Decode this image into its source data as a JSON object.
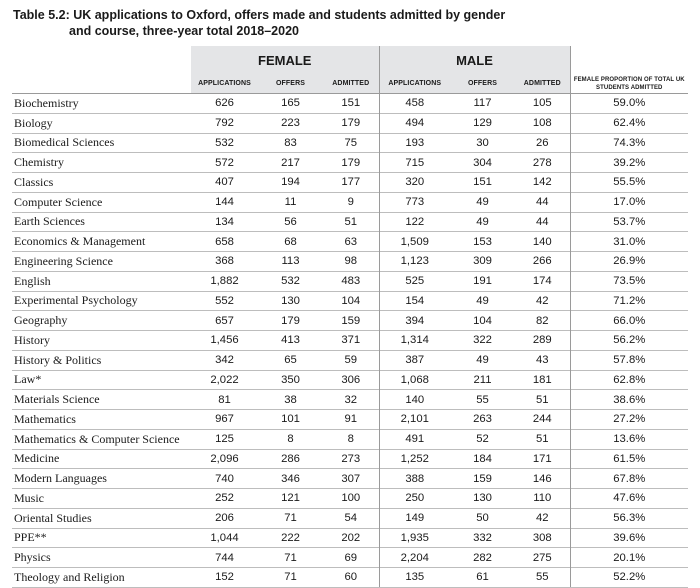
{
  "title": {
    "line1": "Table 5.2: UK applications to Oxford, offers made and students admitted by gender",
    "line2": "and course, three-year total 2018–2020"
  },
  "groups": {
    "female": "FEMALE",
    "male": "MALE"
  },
  "headers": {
    "applications": "APPLICATIONS",
    "offers": "OFFERS",
    "admitted": "ADMITTED",
    "proportion": "FEMALE PROPORTION OF TOTAL UK STUDENTS ADMITTED"
  },
  "rows": [
    [
      "Biochemistry",
      "626",
      "165",
      "151",
      "458",
      "117",
      "105",
      "59.0%"
    ],
    [
      "Biology",
      "792",
      "223",
      "179",
      "494",
      "129",
      "108",
      "62.4%"
    ],
    [
      "Biomedical Sciences",
      "532",
      "83",
      "75",
      "193",
      "30",
      "26",
      "74.3%"
    ],
    [
      "Chemistry",
      "572",
      "217",
      "179",
      "715",
      "304",
      "278",
      "39.2%"
    ],
    [
      "Classics",
      "407",
      "194",
      "177",
      "320",
      "151",
      "142",
      "55.5%"
    ],
    [
      "Computer Science",
      "144",
      "11",
      "9",
      "773",
      "49",
      "44",
      "17.0%"
    ],
    [
      "Earth Sciences",
      "134",
      "56",
      "51",
      "122",
      "49",
      "44",
      "53.7%"
    ],
    [
      "Economics & Management",
      "658",
      "68",
      "63",
      "1,509",
      "153",
      "140",
      "31.0%"
    ],
    [
      "Engineering Science",
      "368",
      "113",
      "98",
      "1,123",
      "309",
      "266",
      "26.9%"
    ],
    [
      "English",
      "1,882",
      "532",
      "483",
      "525",
      "191",
      "174",
      "73.5%"
    ],
    [
      "Experimental Psychology",
      "552",
      "130",
      "104",
      "154",
      "49",
      "42",
      "71.2%"
    ],
    [
      "Geography",
      "657",
      "179",
      "159",
      "394",
      "104",
      "82",
      "66.0%"
    ],
    [
      "History",
      "1,456",
      "413",
      "371",
      "1,314",
      "322",
      "289",
      "56.2%"
    ],
    [
      "History & Politics",
      "342",
      "65",
      "59",
      "387",
      "49",
      "43",
      "57.8%"
    ],
    [
      "Law*",
      "2,022",
      "350",
      "306",
      "1,068",
      "211",
      "181",
      "62.8%"
    ],
    [
      "Materials Science",
      "81",
      "38",
      "32",
      "140",
      "55",
      "51",
      "38.6%"
    ],
    [
      "Mathematics",
      "967",
      "101",
      "91",
      "2,101",
      "263",
      "244",
      "27.2%"
    ],
    [
      "Mathematics & Computer Science",
      "125",
      "8",
      "8",
      "491",
      "52",
      "51",
      "13.6%"
    ],
    [
      "Medicine",
      "2,096",
      "286",
      "273",
      "1,252",
      "184",
      "171",
      "61.5%"
    ],
    [
      "Modern Languages",
      "740",
      "346",
      "307",
      "388",
      "159",
      "146",
      "67.8%"
    ],
    [
      "Music",
      "252",
      "121",
      "100",
      "250",
      "130",
      "110",
      "47.6%"
    ],
    [
      "Oriental Studies",
      "206",
      "71",
      "54",
      "149",
      "50",
      "42",
      "56.3%"
    ],
    [
      "PPE**",
      "1,044",
      "222",
      "202",
      "1,935",
      "332",
      "308",
      "39.6%"
    ],
    [
      "Physics",
      "744",
      "71",
      "69",
      "2,204",
      "282",
      "275",
      "20.1%"
    ],
    [
      "Theology and Religion",
      "152",
      "71",
      "60",
      "135",
      "61",
      "55",
      "52.2%"
    ]
  ]
}
